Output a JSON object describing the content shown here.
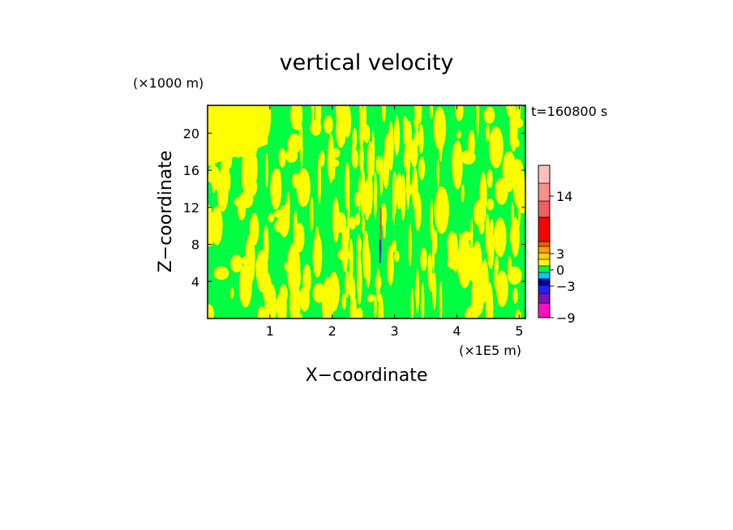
{
  "chart_data": {
    "type": "heatmap",
    "title": "vertical velocity",
    "time_label": "t=160800 s",
    "xlabel": "X−coordinate",
    "ylabel": "Z−coordinate",
    "x_unit": "(×1E5 m)",
    "y_unit": "(×1000 m)",
    "xlim": [
      0,
      5.1
    ],
    "ylim": [
      0,
      23
    ],
    "x_ticks": [
      1,
      2,
      3,
      4,
      5
    ],
    "x_tick_labels": [
      "1",
      "2",
      "3",
      "4",
      "5"
    ],
    "y_ticks": [
      4,
      8,
      12,
      16,
      20
    ],
    "y_tick_labels": [
      "4",
      "8",
      "12",
      "16",
      "20"
    ],
    "dominant_fields": [
      {
        "name": "weak negative",
        "color": "#00ff40"
      },
      {
        "name": "weak positive",
        "color": "#ffff00"
      }
    ],
    "colorbar": {
      "levels": [
        {
          "color": "#ff10c0"
        },
        {
          "color": "#8010c0"
        },
        {
          "color": "#2020ff"
        },
        {
          "color": "#0000a0"
        },
        {
          "color": "#00c8ff"
        },
        {
          "color": "#00ff40"
        },
        {
          "color": "#ffff00"
        },
        {
          "color": "#ffd000"
        },
        {
          "color": "#ffa000"
        },
        {
          "color": "#e06000"
        },
        {
          "color": "#ff0000"
        },
        {
          "color": "#f06060"
        },
        {
          "color": "#f89090"
        },
        {
          "color": "#fcc0c0"
        }
      ],
      "tick_values": [
        -9,
        -3,
        0,
        3,
        14
      ],
      "tick_labels": [
        "−9",
        "−3",
        "0",
        "3",
        "14"
      ]
    }
  }
}
